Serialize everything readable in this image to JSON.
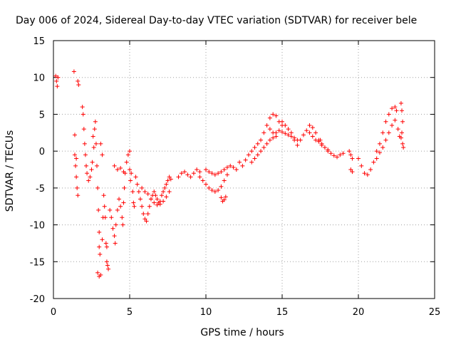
{
  "chart_data": {
    "type": "scatter",
    "title": "Day 006 of 2024, Sidereal Day-to-day VTEC variation (SDTVAR) for receiver bele",
    "xlabel": "GPS time / hours",
    "ylabel": "SDTVAR / TECUs",
    "xlim": [
      0,
      25
    ],
    "ylim": [
      -20,
      15
    ],
    "xticks": [
      0,
      5,
      10,
      15,
      20,
      25
    ],
    "yticks": [
      -20,
      -15,
      -10,
      -5,
      0,
      5,
      10,
      15
    ],
    "grid": true,
    "marker": "+",
    "color": "#ff0000",
    "series": [
      {
        "name": "SDTVAR",
        "points": [
          [
            0.15,
            10.2
          ],
          [
            0.2,
            9.5
          ],
          [
            0.25,
            8.8
          ],
          [
            0.3,
            10.0
          ],
          [
            1.35,
            10.8
          ],
          [
            1.6,
            9.5
          ],
          [
            1.65,
            9.0
          ],
          [
            1.4,
            2.2
          ],
          [
            1.4,
            -0.5
          ],
          [
            1.45,
            -2.0
          ],
          [
            1.5,
            -3.5
          ],
          [
            1.55,
            -5.0
          ],
          [
            1.6,
            -6.0
          ],
          [
            1.5,
            -1.0
          ],
          [
            1.9,
            6.0
          ],
          [
            1.95,
            5.0
          ],
          [
            2.0,
            3.0
          ],
          [
            2.05,
            1.0
          ],
          [
            2.1,
            -0.5
          ],
          [
            2.15,
            -2.0
          ],
          [
            2.2,
            -3.0
          ],
          [
            2.3,
            -4.0
          ],
          [
            2.4,
            -3.5
          ],
          [
            2.5,
            -2.5
          ],
          [
            2.55,
            -1.5
          ],
          [
            2.6,
            2.0
          ],
          [
            2.65,
            0.5
          ],
          [
            2.7,
            3.0
          ],
          [
            2.75,
            4.0
          ],
          [
            2.8,
            1.0
          ],
          [
            2.85,
            -2.0
          ],
          [
            2.9,
            -5.0
          ],
          [
            2.95,
            -8.0
          ],
          [
            3.0,
            -11.0
          ],
          [
            3.0,
            -13.0
          ],
          [
            3.05,
            -14.0
          ],
          [
            2.9,
            -16.5
          ],
          [
            3.0,
            -17.0
          ],
          [
            3.1,
            -16.8
          ],
          [
            3.2,
            -12.0
          ],
          [
            3.25,
            -9.0
          ],
          [
            3.3,
            -6.0
          ],
          [
            3.35,
            -7.5
          ],
          [
            3.4,
            -9.0
          ],
          [
            3.5,
            -13.0
          ],
          [
            3.55,
            -15.5
          ],
          [
            3.6,
            -16.0
          ],
          [
            3.5,
            -15.0
          ],
          [
            3.45,
            -12.5
          ],
          [
            3.1,
            1.0
          ],
          [
            3.2,
            -0.5
          ],
          [
            3.7,
            -8.0
          ],
          [
            3.8,
            -9.0
          ],
          [
            3.9,
            -10.5
          ],
          [
            4.0,
            -11.5
          ],
          [
            4.05,
            -12.5
          ],
          [
            4.1,
            -10.0
          ],
          [
            4.2,
            -8.0
          ],
          [
            4.3,
            -6.5
          ],
          [
            4.4,
            -7.5
          ],
          [
            4.5,
            -9.0
          ],
          [
            4.55,
            -10.0
          ],
          [
            4.6,
            -7.0
          ],
          [
            4.65,
            -5.0
          ],
          [
            4.7,
            -3.0
          ],
          [
            4.0,
            -2.0
          ],
          [
            4.2,
            -2.5
          ],
          [
            4.4,
            -2.3
          ],
          [
            4.6,
            -2.8
          ],
          [
            4.8,
            -1.5
          ],
          [
            4.9,
            -0.5
          ],
          [
            5.0,
            0.0
          ],
          [
            5.0,
            -2.5
          ],
          [
            5.05,
            -4.0
          ],
          [
            5.1,
            -3.0
          ],
          [
            5.2,
            -5.5
          ],
          [
            5.25,
            -7.0
          ],
          [
            5.3,
            -7.5
          ],
          [
            5.4,
            -3.5
          ],
          [
            5.5,
            -4.5
          ],
          [
            5.6,
            -5.5
          ],
          [
            5.7,
            -6.5
          ],
          [
            5.8,
            -7.5
          ],
          [
            5.9,
            -8.5
          ],
          [
            6.0,
            -9.2
          ],
          [
            6.1,
            -9.5
          ],
          [
            6.2,
            -8.5
          ],
          [
            6.3,
            -7.5
          ],
          [
            6.4,
            -6.5
          ],
          [
            6.5,
            -6.0
          ],
          [
            6.6,
            -5.5
          ],
          [
            6.7,
            -6.0
          ],
          [
            6.8,
            -6.5
          ],
          [
            6.9,
            -7.0
          ],
          [
            7.0,
            -6.8
          ],
          [
            7.1,
            -6.0
          ],
          [
            7.2,
            -5.5
          ],
          [
            7.3,
            -5.0
          ],
          [
            7.4,
            -4.5
          ],
          [
            7.5,
            -4.0
          ],
          [
            7.6,
            -3.5
          ],
          [
            7.7,
            -3.8
          ],
          [
            5.8,
            -5.0
          ],
          [
            6.0,
            -5.5
          ],
          [
            6.2,
            -5.8
          ],
          [
            6.4,
            -6.5
          ],
          [
            6.6,
            -7.0
          ],
          [
            6.8,
            -7.3
          ],
          [
            7.0,
            -7.2
          ],
          [
            7.2,
            -6.8
          ],
          [
            7.4,
            -6.2
          ],
          [
            7.6,
            -5.5
          ],
          [
            8.2,
            -3.5
          ],
          [
            8.4,
            -3.0
          ],
          [
            8.6,
            -2.8
          ],
          [
            8.8,
            -3.2
          ],
          [
            9.0,
            -3.5
          ],
          [
            9.2,
            -3.0
          ],
          [
            9.4,
            -2.5
          ],
          [
            9.6,
            -2.8
          ],
          [
            9.6,
            -3.5
          ],
          [
            9.8,
            -4.0
          ],
          [
            10.0,
            -4.5
          ],
          [
            10.2,
            -5.0
          ],
          [
            10.4,
            -5.3
          ],
          [
            10.6,
            -5.5
          ],
          [
            10.8,
            -5.3
          ],
          [
            11.0,
            -4.8
          ],
          [
            11.2,
            -4.0
          ],
          [
            11.4,
            -3.2
          ],
          [
            10.0,
            -2.5
          ],
          [
            10.2,
            -2.8
          ],
          [
            10.4,
            -3.0
          ],
          [
            10.6,
            -3.2
          ],
          [
            10.8,
            -3.0
          ],
          [
            11.0,
            -2.8
          ],
          [
            11.2,
            -2.5
          ],
          [
            11.4,
            -2.2
          ],
          [
            11.6,
            -2.0
          ],
          [
            11.8,
            -2.2
          ],
          [
            12.0,
            -2.5
          ],
          [
            11.0,
            -6.3
          ],
          [
            11.1,
            -6.8
          ],
          [
            11.2,
            -6.6
          ],
          [
            11.3,
            -6.2
          ],
          [
            12.2,
            -1.5
          ],
          [
            12.4,
            -2.0
          ],
          [
            12.6,
            -1.2
          ],
          [
            12.8,
            -0.5
          ],
          [
            13.0,
            0.0
          ],
          [
            13.2,
            0.5
          ],
          [
            13.4,
            1.0
          ],
          [
            13.6,
            1.5
          ],
          [
            13.8,
            2.5
          ],
          [
            14.0,
            3.5
          ],
          [
            14.2,
            4.5
          ],
          [
            14.4,
            5.0
          ],
          [
            14.6,
            4.8
          ],
          [
            14.8,
            4.0
          ],
          [
            15.0,
            3.5
          ],
          [
            13.0,
            -1.5
          ],
          [
            13.2,
            -1.0
          ],
          [
            13.4,
            -0.5
          ],
          [
            13.6,
            0.0
          ],
          [
            13.8,
            0.5
          ],
          [
            14.0,
            1.0
          ],
          [
            14.2,
            1.5
          ],
          [
            14.4,
            1.8
          ],
          [
            14.6,
            2.0
          ],
          [
            14.2,
            3.0
          ],
          [
            14.4,
            2.5
          ],
          [
            14.6,
            2.5
          ],
          [
            14.8,
            2.8
          ],
          [
            15.0,
            2.6
          ],
          [
            15.2,
            2.4
          ],
          [
            15.4,
            2.2
          ],
          [
            15.6,
            2.0
          ],
          [
            15.8,
            1.8
          ],
          [
            16.0,
            1.5
          ],
          [
            15.0,
            4.0
          ],
          [
            15.2,
            3.5
          ],
          [
            15.4,
            3.0
          ],
          [
            15.6,
            2.5
          ],
          [
            15.8,
            1.5
          ],
          [
            16.0,
            0.8
          ],
          [
            16.2,
            1.5
          ],
          [
            16.4,
            2.2
          ],
          [
            16.6,
            2.8
          ],
          [
            16.8,
            3.5
          ],
          [
            17.0,
            3.2
          ],
          [
            17.2,
            2.5
          ],
          [
            17.4,
            1.5
          ],
          [
            17.6,
            1.0
          ],
          [
            17.8,
            0.5
          ],
          [
            18.0,
            0.0
          ],
          [
            16.8,
            2.5
          ],
          [
            17.0,
            2.0
          ],
          [
            17.2,
            1.5
          ],
          [
            17.4,
            1.3
          ],
          [
            17.6,
            0.8
          ],
          [
            17.5,
            1.5
          ],
          [
            18.0,
            0.2
          ],
          [
            18.2,
            -0.3
          ],
          [
            18.4,
            -0.6
          ],
          [
            18.6,
            -0.8
          ],
          [
            18.8,
            -0.5
          ],
          [
            19.0,
            -0.3
          ],
          [
            19.4,
            0.0
          ],
          [
            19.5,
            -0.5
          ],
          [
            19.6,
            -1.0
          ],
          [
            19.5,
            -2.5
          ],
          [
            19.6,
            -2.8
          ],
          [
            20.0,
            -1.0
          ],
          [
            20.2,
            -2.0
          ],
          [
            20.4,
            -3.0
          ],
          [
            20.6,
            -3.2
          ],
          [
            20.8,
            -2.5
          ],
          [
            21.0,
            -1.5
          ],
          [
            21.2,
            0.0
          ],
          [
            21.4,
            1.0
          ],
          [
            21.6,
            2.5
          ],
          [
            21.8,
            4.0
          ],
          [
            22.0,
            5.0
          ],
          [
            22.2,
            5.8
          ],
          [
            22.4,
            6.0
          ],
          [
            22.5,
            5.5
          ],
          [
            21.2,
            -1.0
          ],
          [
            21.4,
            -0.2
          ],
          [
            21.6,
            0.5
          ],
          [
            21.8,
            1.5
          ],
          [
            22.0,
            2.5
          ],
          [
            22.2,
            3.5
          ],
          [
            22.4,
            4.2
          ],
          [
            22.6,
            3.0
          ],
          [
            22.7,
            2.0
          ],
          [
            22.8,
            6.5
          ],
          [
            22.85,
            5.5
          ],
          [
            22.9,
            4.0
          ],
          [
            22.85,
            2.5
          ],
          [
            22.9,
            1.0
          ],
          [
            22.95,
            0.5
          ],
          [
            22.8,
            1.8
          ]
        ]
      }
    ]
  }
}
